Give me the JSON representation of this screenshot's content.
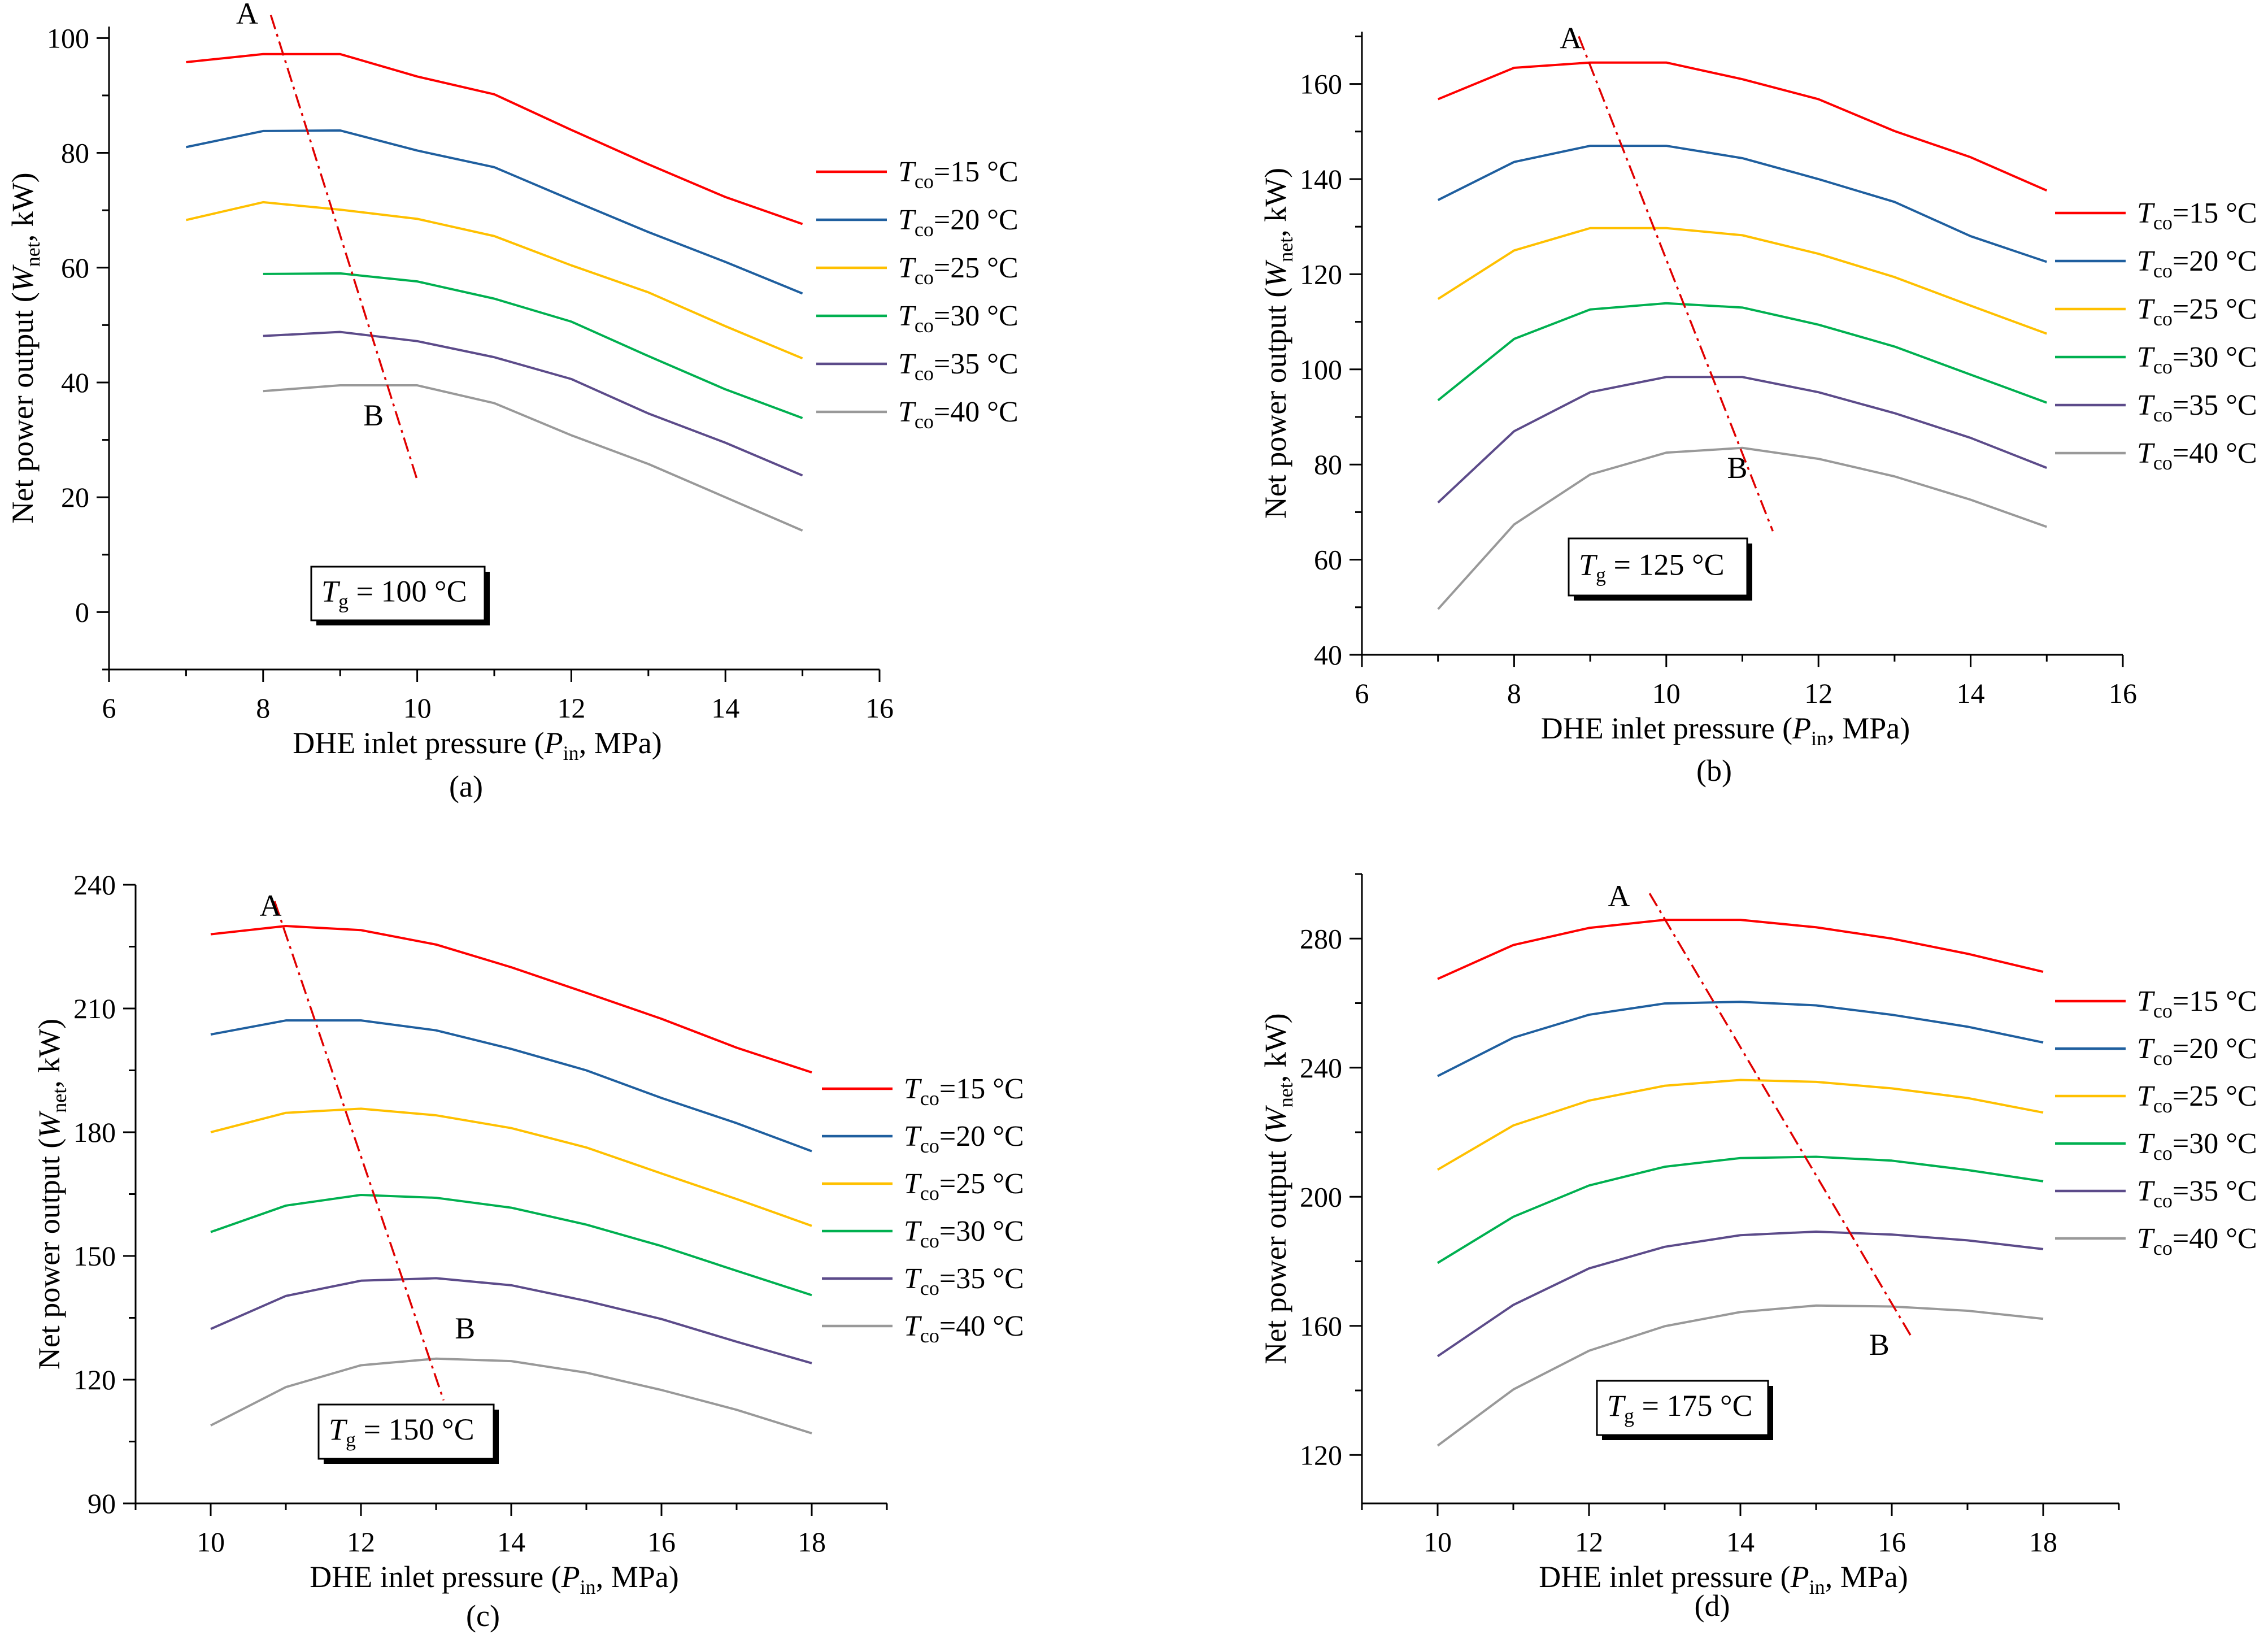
{
  "chart_data": [
    {
      "type": "line",
      "panel_label": "(a)",
      "title": "",
      "box": {
        "italic": "T",
        "sub": "g",
        "rest": " = 100 °C"
      },
      "xlabel": {
        "main": "DHE inlet pressure (",
        "italic": "P",
        "sub": "in",
        "tail": ", MPa)"
      },
      "ylabel": {
        "main": "Net power output (",
        "italic": "W",
        "sub": "net",
        "tail": ", kW)"
      },
      "xlim": [
        6,
        16
      ],
      "ylim": [
        -10,
        102
      ],
      "xticks": [
        6,
        8,
        10,
        12,
        14,
        16
      ],
      "yticks": [
        0,
        20,
        40,
        60,
        80,
        100
      ],
      "legend_position": "right",
      "series": [
        {
          "name": "15 °C",
          "color": "#ff0000",
          "x": [
            7,
            8,
            9,
            10,
            11,
            12,
            13,
            14,
            15
          ],
          "y": [
            95.8,
            97.2,
            97.2,
            93.3,
            90.2,
            84.0,
            78.0,
            72.3,
            67.6
          ]
        },
        {
          "name": "20 °C",
          "color": "#1f5f9f",
          "x": [
            7,
            8,
            9,
            10,
            11,
            12,
            13,
            14,
            15
          ],
          "y": [
            81.0,
            83.8,
            83.9,
            80.4,
            77.5,
            71.8,
            66.2,
            61.0,
            55.5
          ]
        },
        {
          "name": "25 °C",
          "color": "#ffc000",
          "x": [
            7,
            8,
            9,
            10,
            11,
            12,
            13,
            14,
            15
          ],
          "y": [
            68.3,
            71.4,
            70.1,
            68.5,
            65.5,
            60.4,
            55.7,
            49.8,
            44.2
          ]
        },
        {
          "name": "30 °C",
          "color": "#00b050",
          "x": [
            8,
            9,
            10,
            11,
            12,
            13,
            14,
            15
          ],
          "y": [
            58.9,
            59.0,
            57.6,
            54.6,
            50.6,
            44.6,
            38.8,
            33.8
          ]
        },
        {
          "name": "35 °C",
          "color": "#5c4b8a",
          "x": [
            8,
            9,
            10,
            11,
            12,
            13,
            14,
            15
          ],
          "y": [
            48.1,
            48.8,
            47.2,
            44.4,
            40.6,
            34.6,
            29.5,
            23.8
          ]
        },
        {
          "name": "40 °C",
          "color": "#999999",
          "x": [
            8,
            9,
            10,
            11,
            12,
            13,
            14,
            15
          ],
          "y": [
            38.5,
            39.5,
            39.5,
            36.4,
            30.8,
            25.8,
            20.0,
            14.2
          ]
        }
      ],
      "trend_line": {
        "from": [
          8.1,
          104
        ],
        "to": [
          10.0,
          23
        ]
      },
      "annotations": [
        {
          "text": "A",
          "x": 7.65,
          "y": 102.5
        },
        {
          "text": "B",
          "x": 9.3,
          "y": 32.5
        }
      ]
    },
    {
      "type": "line",
      "panel_label": "(b)",
      "title": "",
      "box": {
        "italic": "T",
        "sub": "g",
        "rest": " = 125 °C"
      },
      "xlabel": {
        "main": "DHE inlet pressure (",
        "italic": "P",
        "sub": "in",
        "tail": ", MPa)"
      },
      "ylabel": {
        "main": "Net power output (",
        "italic": "W",
        "sub": "net",
        "tail": ", kW)"
      },
      "xlim": [
        6,
        16
      ],
      "ylim": [
        40,
        171
      ],
      "xticks": [
        6,
        8,
        10,
        12,
        14,
        16
      ],
      "yticks": [
        40,
        60,
        80,
        100,
        120,
        140,
        160
      ],
      "legend_position": "right",
      "series": [
        {
          "name": "15 °C",
          "color": "#ff0000",
          "x": [
            7,
            8,
            9,
            10,
            11,
            12,
            13,
            14,
            15
          ],
          "y": [
            156.8,
            163.4,
            164.5,
            164.5,
            161.0,
            156.8,
            150.1,
            144.6,
            137.6
          ]
        },
        {
          "name": "20 °C",
          "color": "#1f5f9f",
          "x": [
            7,
            8,
            9,
            10,
            11,
            12,
            13,
            14,
            15
          ],
          "y": [
            135.6,
            143.6,
            147.0,
            147.0,
            144.4,
            140.0,
            135.2,
            128.0,
            122.6
          ]
        },
        {
          "name": "25 °C",
          "color": "#ffc000",
          "x": [
            7,
            8,
            9,
            10,
            11,
            12,
            13,
            14,
            15
          ],
          "y": [
            114.8,
            125.0,
            129.7,
            129.7,
            128.2,
            124.3,
            119.4,
            113.4,
            107.5
          ]
        },
        {
          "name": "30 °C",
          "color": "#00b050",
          "x": [
            7,
            8,
            9,
            10,
            11,
            12,
            13,
            14,
            15
          ],
          "y": [
            93.5,
            106.4,
            112.6,
            113.9,
            113.0,
            109.4,
            104.8,
            98.9,
            93.0
          ]
        },
        {
          "name": "35 °C",
          "color": "#5c4b8a",
          "x": [
            7,
            8,
            9,
            10,
            11,
            12,
            13,
            14,
            15
          ],
          "y": [
            72.0,
            87.0,
            95.2,
            98.4,
            98.4,
            95.2,
            90.8,
            85.6,
            79.3
          ]
        },
        {
          "name": "40 °C",
          "color": "#999999",
          "x": [
            7,
            8,
            9,
            10,
            11,
            12,
            13,
            14,
            15
          ],
          "y": [
            49.6,
            67.4,
            77.9,
            82.5,
            83.5,
            81.2,
            77.5,
            72.6,
            66.9
          ]
        }
      ],
      "trend_line": {
        "from": [
          8.85,
          170
        ],
        "to": [
          11.4,
          66
        ]
      },
      "annotations": [
        {
          "text": "A",
          "x": 8.6,
          "y": 167.5
        },
        {
          "text": "B",
          "x": 10.8,
          "y": 77.2
        }
      ]
    },
    {
      "type": "line",
      "panel_label": "(c)",
      "title": "",
      "box": {
        "italic": "T",
        "sub": "g",
        "rest": " = 150 °C"
      },
      "xlabel": {
        "main": "DHE inlet pressure (",
        "italic": "P",
        "sub": "in",
        "tail": ", MPa)"
      },
      "ylabel": {
        "main": "Net power output (",
        "italic": "W",
        "sub": "net",
        "tail": ", kW)"
      },
      "xlim": [
        9,
        19
      ],
      "ylim": [
        90,
        240
      ],
      "xticks": [
        10,
        12,
        14,
        16,
        18
      ],
      "yticks": [
        90,
        120,
        150,
        180,
        210,
        240
      ],
      "legend_position": "right",
      "series": [
        {
          "name": "15 °C",
          "color": "#ff0000",
          "x": [
            10,
            11,
            12,
            13,
            14,
            15,
            16,
            17,
            18
          ],
          "y": [
            228.0,
            230.0,
            229.0,
            225.5,
            220.0,
            213.8,
            207.5,
            200.5,
            194.5
          ]
        },
        {
          "name": "20 °C",
          "color": "#1f5f9f",
          "x": [
            10,
            11,
            12,
            13,
            14,
            15,
            16,
            17,
            18
          ],
          "y": [
            203.7,
            207.1,
            207.1,
            204.7,
            200.2,
            195.0,
            188.3,
            182.2,
            175.4
          ]
        },
        {
          "name": "25 °C",
          "color": "#ffc000",
          "x": [
            10,
            11,
            12,
            13,
            14,
            15,
            16,
            17,
            18
          ],
          "y": [
            180.0,
            184.7,
            185.7,
            184.1,
            181.0,
            176.3,
            170.0,
            163.8,
            157.3
          ]
        },
        {
          "name": "30 °C",
          "color": "#00b050",
          "x": [
            10,
            11,
            12,
            13,
            14,
            15,
            16,
            17,
            18
          ],
          "y": [
            155.8,
            162.2,
            164.8,
            164.1,
            161.7,
            157.6,
            152.4,
            146.4,
            140.5
          ]
        },
        {
          "name": "35 °C",
          "color": "#5c4b8a",
          "x": [
            10,
            11,
            12,
            13,
            14,
            15,
            16,
            17,
            18
          ],
          "y": [
            132.3,
            140.3,
            144.0,
            144.6,
            142.9,
            139.1,
            134.7,
            129.2,
            124.0
          ]
        },
        {
          "name": "40 °C",
          "color": "#999999",
          "x": [
            10,
            11,
            12,
            13,
            14,
            15,
            16,
            17,
            18
          ],
          "y": [
            108.9,
            118.2,
            123.5,
            125.1,
            124.5,
            121.7,
            117.5,
            112.7,
            107.0
          ]
        }
      ],
      "trend_line": {
        "from": [
          10.85,
          236
        ],
        "to": [
          13.1,
          115
        ]
      },
      "annotations": [
        {
          "text": "A",
          "x": 10.65,
          "y": 232.5
        },
        {
          "text": "B",
          "x": 13.25,
          "y": 130
        }
      ]
    },
    {
      "type": "line",
      "panel_label": "(d)",
      "title": "",
      "box": {
        "italic": "T",
        "sub": "g",
        "rest": " = 175 °C"
      },
      "xlabel": {
        "main": "DHE inlet pressure (",
        "italic": "P",
        "sub": "in",
        "tail": ", MPa)"
      },
      "ylabel": {
        "main": "Net power output (",
        "italic": "W",
        "sub": "net",
        "tail": ", kW)"
      },
      "xlim": [
        9,
        19
      ],
      "ylim": [
        105,
        300
      ],
      "xticks": [
        10,
        12,
        14,
        16,
        18
      ],
      "yticks": [
        120,
        160,
        200,
        240,
        280
      ],
      "legend_position": "right",
      "series": [
        {
          "name": "15 °C",
          "color": "#ff0000",
          "x": [
            10,
            11,
            12,
            13,
            14,
            15,
            16,
            17,
            18
          ],
          "y": [
            267.5,
            278.0,
            283.3,
            285.8,
            285.8,
            283.5,
            280.0,
            275.3,
            269.7
          ]
        },
        {
          "name": "20 °C",
          "color": "#1f5f9f",
          "x": [
            10,
            11,
            12,
            13,
            14,
            15,
            16,
            17,
            18
          ],
          "y": [
            237.4,
            249.3,
            256.4,
            259.9,
            260.4,
            259.3,
            256.4,
            252.7,
            247.8
          ]
        },
        {
          "name": "25 °C",
          "color": "#ffc000",
          "x": [
            10,
            11,
            12,
            13,
            14,
            15,
            16,
            17,
            18
          ],
          "y": [
            208.4,
            222.1,
            229.8,
            234.4,
            236.2,
            235.6,
            233.6,
            230.6,
            226.1
          ]
        },
        {
          "name": "30 °C",
          "color": "#00b050",
          "x": [
            10,
            11,
            12,
            13,
            14,
            15,
            16,
            17,
            18
          ],
          "y": [
            179.5,
            193.8,
            203.5,
            209.3,
            212.0,
            212.4,
            211.2,
            208.3,
            204.8
          ]
        },
        {
          "name": "35 °C",
          "color": "#5c4b8a",
          "x": [
            10,
            11,
            12,
            13,
            14,
            15,
            16,
            17,
            18
          ],
          "y": [
            150.6,
            166.5,
            177.8,
            184.5,
            188.1,
            189.2,
            188.3,
            186.5,
            183.8
          ]
        },
        {
          "name": "40 °C",
          "color": "#999999",
          "x": [
            10,
            11,
            12,
            13,
            14,
            15,
            16,
            17,
            18
          ],
          "y": [
            122.9,
            140.3,
            152.3,
            159.9,
            164.3,
            166.3,
            166.0,
            164.7,
            162.2
          ]
        }
      ],
      "trend_line": {
        "from": [
          12.8,
          294
        ],
        "to": [
          16.25,
          157
        ]
      },
      "annotations": [
        {
          "text": "A",
          "x": 12.25,
          "y": 290
        },
        {
          "text": "B",
          "x": 15.7,
          "y": 151
        }
      ]
    }
  ],
  "legend": {
    "symbol": "T",
    "sub": "co",
    "entries": [
      "=15 °C",
      "=20 °C",
      "=25 °C",
      "=30 °C",
      "=35 °C",
      "=40 °C"
    ]
  }
}
